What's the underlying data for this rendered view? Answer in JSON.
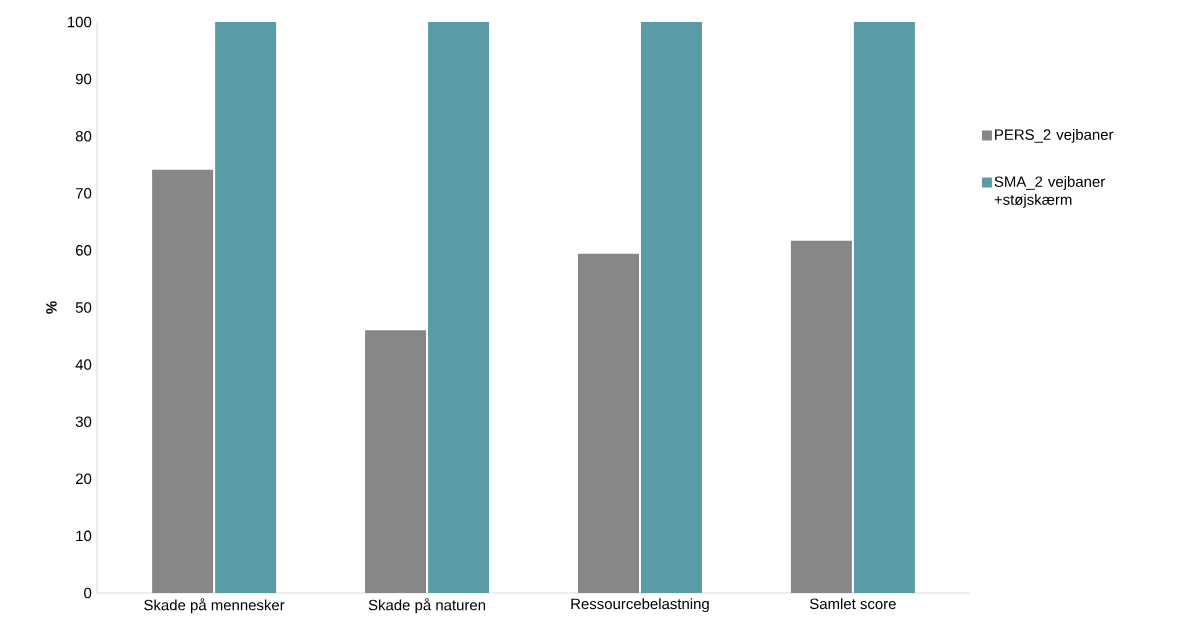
{
  "chart_data": {
    "type": "bar",
    "ylabel": "%",
    "categories": [
      "Skade på mennesker",
      "Skade på naturen",
      "Ressourcebelastning",
      "Samlet score"
    ],
    "series": [
      {
        "name": "PERS_2 vejbaner",
        "color": "#878787",
        "values": [
          74.1,
          46,
          59.4,
          61.7
        ]
      },
      {
        "name": "SMA_2 vejbaner +støjskærm",
        "color": "#5b9ba8",
        "values": [
          100,
          100,
          100,
          100
        ]
      }
    ],
    "ylim": [
      0,
      100
    ],
    "yticks": [
      0,
      10,
      20,
      30,
      40,
      50,
      60,
      70,
      80,
      90,
      100
    ],
    "grid": false,
    "legend": "right"
  }
}
